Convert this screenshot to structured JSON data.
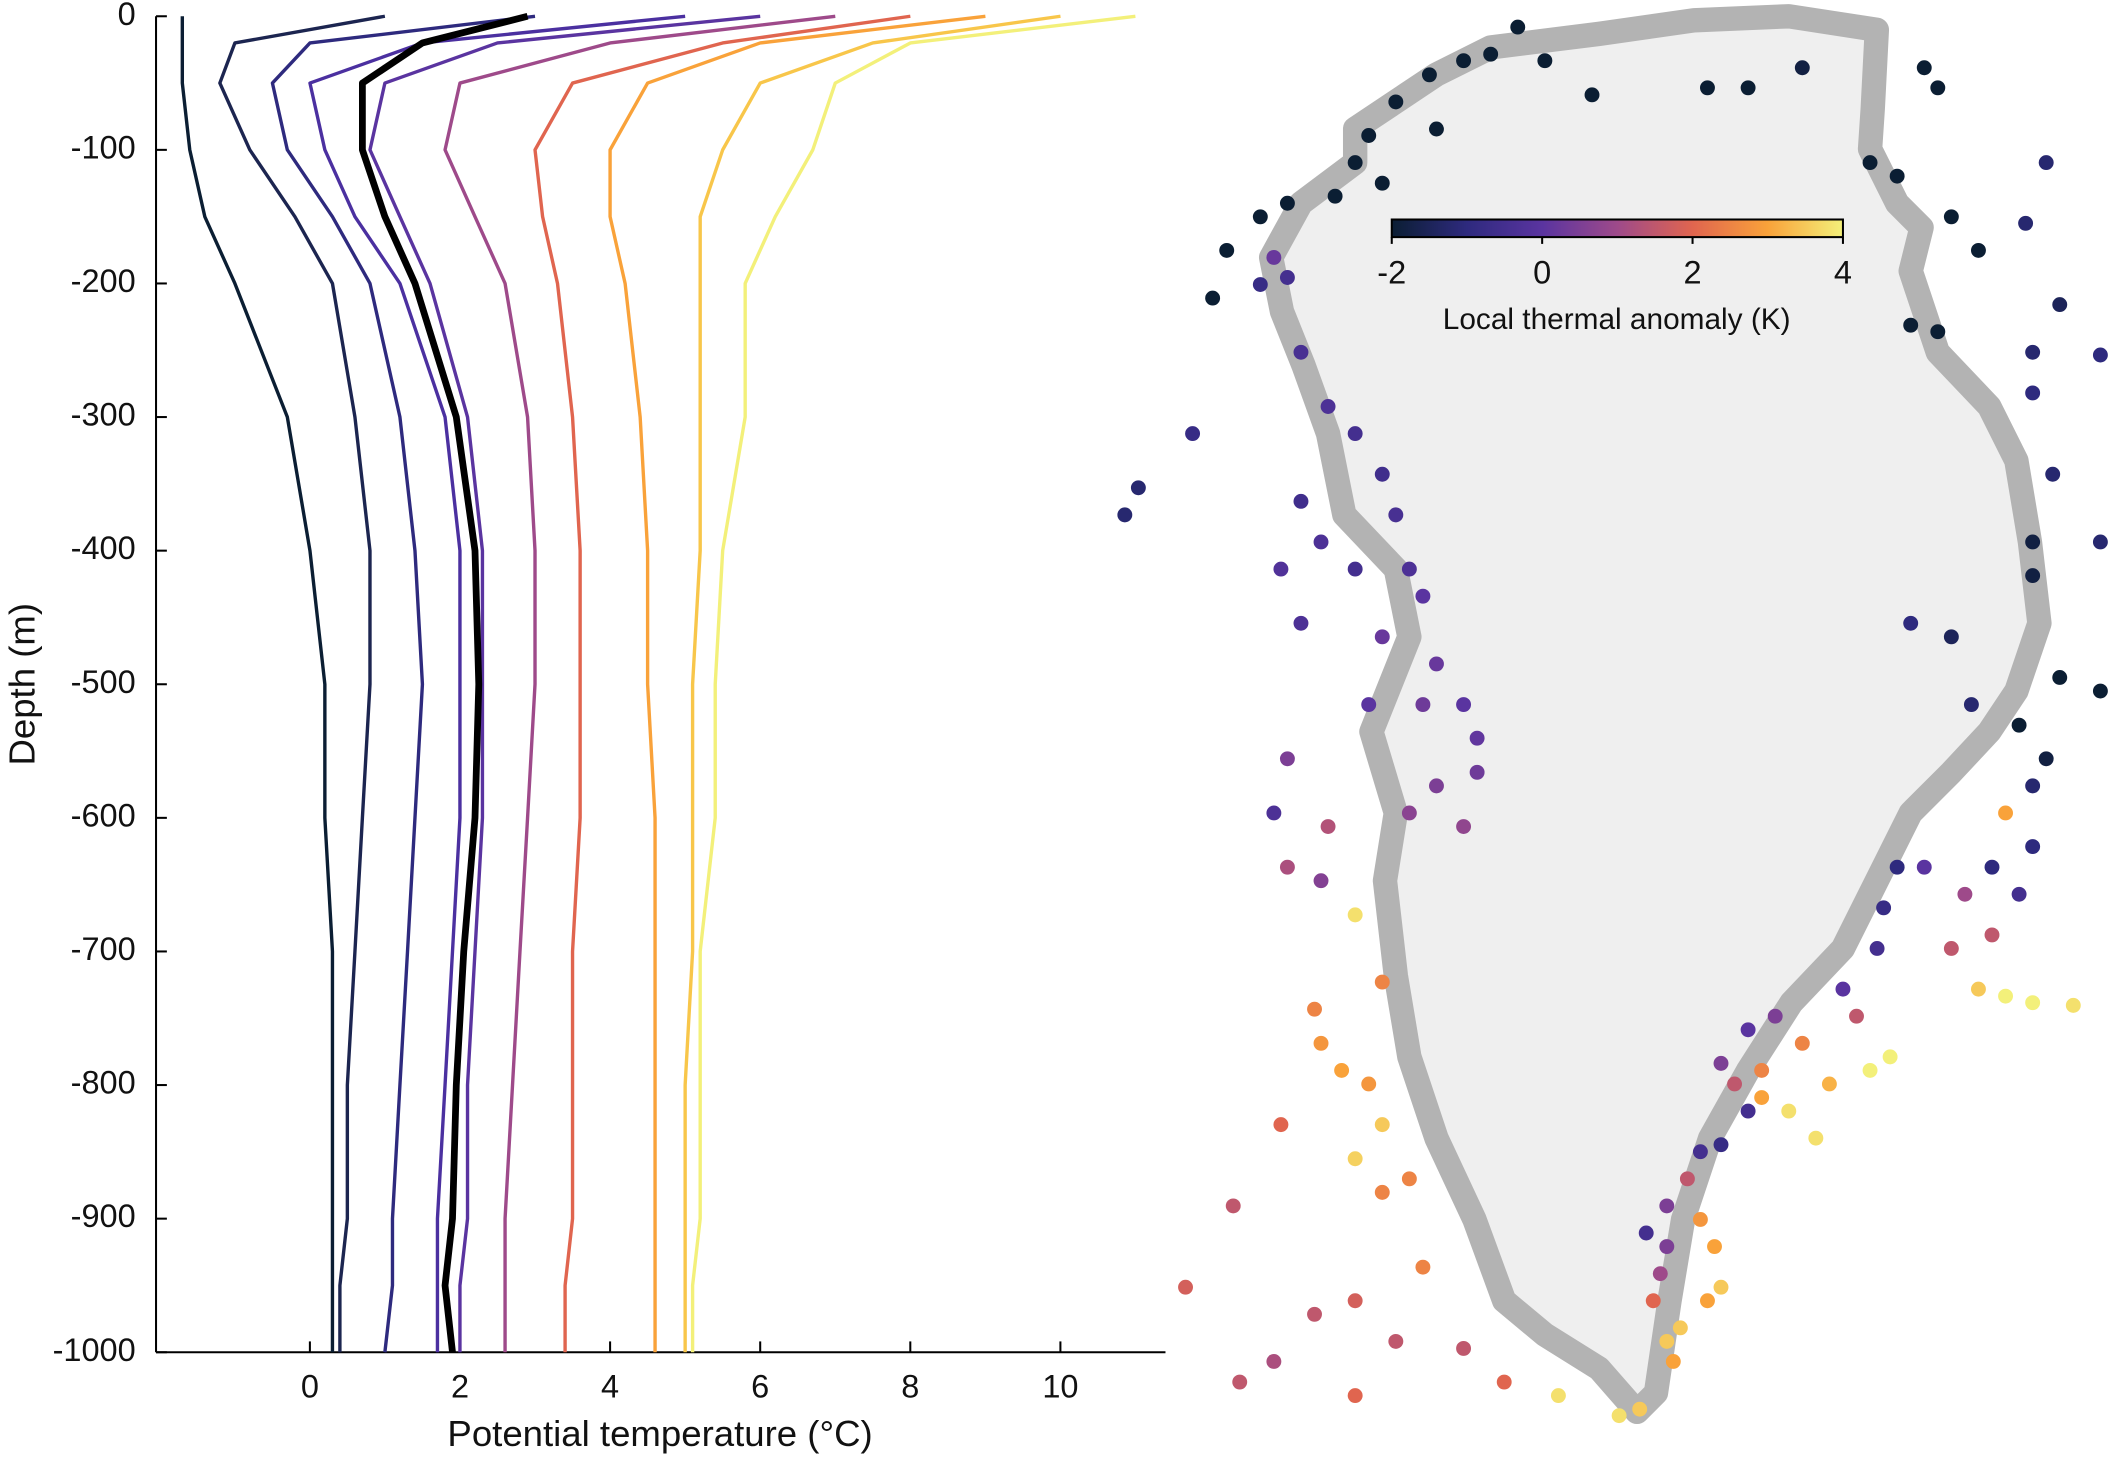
{
  "chart_data": [
    {
      "type": "line",
      "xlabel": "Potential temperature (°C)",
      "ylabel": "Depth (m)",
      "xlim": [
        -2.05,
        11.4
      ],
      "ylim": [
        -1000,
        0
      ],
      "xticks": [
        0,
        2,
        4,
        6,
        8,
        10
      ],
      "yticks": [
        0,
        -100,
        -200,
        -300,
        -400,
        -500,
        -600,
        -700,
        -800,
        -900,
        -1000
      ],
      "y": [
        0,
        -20,
        -50,
        -100,
        -150,
        -200,
        -300,
        -400,
        -500,
        -600,
        -700,
        -800,
        -900,
        -950,
        -1000
      ],
      "series": [
        {
          "color": "#0b1e33",
          "values": [
            -1.7,
            -1.7,
            -1.7,
            -1.6,
            -1.4,
            -1.0,
            -0.3,
            0.0,
            0.2,
            0.2,
            0.3,
            0.3,
            0.3,
            0.3,
            0.3
          ]
        },
        {
          "color": "#1c2550",
          "values": [
            1,
            -1.0,
            -1.2,
            -0.8,
            -0.2,
            0.3,
            0.6,
            0.8,
            0.8,
            0.7,
            0.6,
            0.5,
            0.5,
            0.4,
            0.4
          ]
        },
        {
          "color": "#2e2a7e",
          "values": [
            3,
            0,
            -0.5,
            -0.3,
            0.3,
            0.8,
            1.2,
            1.4,
            1.5,
            1.4,
            1.3,
            1.2,
            1.1,
            1.1,
            1.0
          ]
        },
        {
          "color": "#4b30a0",
          "values": [
            5,
            1.5,
            0,
            0.2,
            0.6,
            1.2,
            1.8,
            2.0,
            2.0,
            2.0,
            1.9,
            1.8,
            1.7,
            1.7,
            1.7
          ]
        },
        {
          "color": "#5a34a0",
          "values": [
            6,
            2.5,
            1,
            0.8,
            1.2,
            1.6,
            2.1,
            2.3,
            2.3,
            2.3,
            2.2,
            2.1,
            2.1,
            2.0,
            2.0
          ]
        },
        {
          "color": "#9e4a8a",
          "values": [
            7,
            4,
            2,
            1.8,
            2.2,
            2.6,
            2.9,
            3.0,
            3.0,
            2.9,
            2.8,
            2.7,
            2.6,
            2.6,
            2.6
          ]
        },
        {
          "color": "#e0654f",
          "values": [
            8,
            5.5,
            3.5,
            3.0,
            3.1,
            3.3,
            3.5,
            3.6,
            3.6,
            3.6,
            3.5,
            3.5,
            3.5,
            3.4,
            3.4
          ]
        },
        {
          "color": "#f9a23a",
          "values": [
            9,
            6,
            4.5,
            4.0,
            4.0,
            4.2,
            4.4,
            4.5,
            4.5,
            4.6,
            4.6,
            4.6,
            4.6,
            4.6,
            4.6
          ]
        },
        {
          "color": "#f8c64a",
          "values": [
            10,
            7.5,
            6,
            5.5,
            5.2,
            5.2,
            5.2,
            5.2,
            5.1,
            5.1,
            5.1,
            5.0,
            5.0,
            5.0,
            5.0
          ]
        },
        {
          "color": "#f3f07a",
          "values": [
            11,
            8,
            7,
            6.7,
            6.2,
            5.8,
            5.8,
            5.5,
            5.4,
            5.4,
            5.2,
            5.2,
            5.2,
            5.1,
            5.1
          ]
        },
        {
          "color": "#000000",
          "values": [
            2.9,
            1.5,
            0.7,
            0.7,
            1.0,
            1.4,
            1.95,
            2.2,
            2.25,
            2.2,
            2.05,
            1.95,
            1.9,
            1.8,
            1.9
          ]
        }
      ]
    },
    {
      "type": "scatter",
      "xlim": [
        -1000,
        900
      ],
      "ylim": [
        -3200,
        -500
      ],
      "colormap": [
        "#0b1e33",
        "#2e2a7e",
        "#5a34a0",
        "#9e4a8a",
        "#e0654f",
        "#f9a23a",
        "#f3f07a"
      ],
      "clim": [
        -2,
        4
      ],
      "colorbar_ticks": [
        -2,
        0,
        2,
        4
      ],
      "colorbar_label": "Local thermal anomaly (K)",
      "x": [
        -388,
        -325,
        -275,
        -175,
        -88,
        -225,
        -450,
        -375,
        -500,
        -525,
        -475,
        -562,
        -650,
        -700,
        -762,
        -788,
        125,
        200,
        300,
        525,
        550,
        425,
        475,
        575,
        625,
        500,
        550,
        750,
        712,
        775,
        725,
        850,
        725,
        762,
        850,
        725,
        725,
        500,
        575,
        612,
        775,
        850,
        700,
        750,
        725,
        -675,
        -700,
        -650,
        -625,
        -575,
        -525,
        -475,
        -450,
        -425,
        -400,
        -525,
        -588,
        -625,
        -825,
        -950,
        -925,
        -662,
        -625,
        -475,
        -375,
        -325,
        -400,
        -300,
        -500,
        -375,
        -425,
        -325,
        -300,
        -650,
        -675,
        -588,
        -650,
        -575,
        -600,
        -588,
        -550,
        -525,
        -475,
        -500,
        -475,
        -662,
        -525,
        -475,
        -425,
        -750,
        -838,
        -600,
        -525,
        -400,
        -450,
        -325,
        -738,
        -675,
        -525,
        -250,
        -150,
        -38,
        0,
        50,
        62,
        75,
        25,
        38,
        50,
        12,
        50,
        88,
        112,
        138,
        150,
        125,
        112,
        150,
        200,
        175,
        225,
        275,
        325,
        225,
        150,
        200,
        250,
        300,
        350,
        425,
        462,
        400,
        375,
        438,
        450,
        475,
        525,
        600,
        650,
        575,
        625,
        675,
        725,
        800,
        675,
        725,
        650,
        700
      ],
      "y": [
        -638,
        -612,
        -600,
        -612,
        -675,
        -550,
        -688,
        -738,
        -750,
        -800,
        -838,
        -862,
        -875,
        -900,
        -962,
        -1050,
        -662,
        -662,
        -625,
        -625,
        -662,
        -800,
        -825,
        -900,
        -962,
        -1100,
        -1112,
        -800,
        -912,
        -1062,
        -1150,
        -1155,
        -1225,
        -1375,
        -1500,
        -1500,
        -1562,
        -1650,
        -1675,
        -1800,
        -1750,
        -1775,
        -1838,
        -1900,
        -1950,
        -975,
        -1025,
        -1012,
        -1150,
        -1250,
        -1300,
        -1375,
        -1450,
        -1550,
        -1600,
        -1550,
        -1500,
        -1425,
        -1300,
        -1450,
        -1400,
        -1550,
        -1650,
        -1675,
        -1725,
        -1800,
        -1800,
        -1862,
        -1800,
        -1950,
        -2000,
        -2025,
        -1925,
        -1900,
        -2000,
        -2125,
        -2100,
        -2025,
        -2362,
        -2425,
        -2475,
        -2188,
        -2312,
        -2500,
        -2575,
        -2575,
        -2638,
        -2700,
        -2675,
        -2725,
        -2875,
        -2925,
        -2900,
        -2838,
        -2975,
        -2988,
        -3050,
        -3012,
        -3075,
        -3050,
        -3075,
        -3112,
        -3100,
        -2975,
        -3012,
        -2950,
        -2900,
        -2850,
        -2800,
        -2775,
        -2725,
        -2675,
        -2750,
        -2800,
        -2875,
        -2900,
        -2625,
        -2612,
        -2550,
        -2500,
        -2525,
        -2550,
        -2600,
        -2475,
        -2462,
        -2400,
        -2375,
        -2425,
        -2500,
        -2475,
        -2450,
        -2375,
        -2325,
        -2250,
        -2175,
        -2100,
        -2100,
        -2150,
        -2225,
        -2250,
        -2325,
        -2338,
        -2350,
        -2355,
        -2000,
        -2062,
        -2100,
        -2150
      ],
      "values": [
        -2,
        -2,
        -2,
        -2,
        -2,
        -2,
        -2,
        -2,
        -2,
        -2,
        -2,
        -2,
        -2,
        -2,
        -2,
        -2,
        -2,
        -2,
        -1.8,
        -2,
        -2,
        -2,
        -2,
        -2,
        -2,
        -2,
        -2,
        -1.2,
        -1.2,
        -1.5,
        -1.2,
        -1,
        -1,
        -1.2,
        -1.2,
        -1.8,
        -1.8,
        -1,
        -1.5,
        -1.2,
        -2,
        -2,
        -2,
        -1.8,
        -1.2,
        0.2,
        -0.8,
        -0.5,
        -0.4,
        -0.3,
        -0.5,
        -0.6,
        -0.4,
        -0.3,
        0,
        -0.5,
        -0.3,
        -0.6,
        -0.8,
        -1.2,
        -1.2,
        -0.2,
        -0.3,
        0.2,
        0.2,
        0,
        0.3,
        0.1,
        0,
        0.5,
        0.7,
        0.8,
        0.3,
        0.5,
        -0.3,
        0.6,
        1.2,
        1.3,
        2.5,
        2.8,
        3,
        3.8,
        2.5,
        2.8,
        3.5,
        2,
        3.6,
        2.5,
        2.5,
        1.5,
        1.8,
        1.5,
        1.8,
        2.5,
        1.5,
        1.5,
        1.5,
        1.2,
        2,
        2,
        3.8,
        3.8,
        3.5,
        3.5,
        3,
        3.5,
        2,
        1,
        0.5,
        -0.5,
        0.5,
        1.5,
        2.8,
        3,
        3.5,
        3,
        -0.5,
        -0.8,
        -0.5,
        1.5,
        3,
        3.8,
        3.8,
        2.5,
        0.5,
        0,
        0.5,
        2.5,
        3.2,
        4,
        4,
        1.5,
        0,
        -0.5,
        -0.8,
        -1,
        0,
        1,
        1.5,
        1.5,
        3.5,
        4,
        4,
        3.8,
        3,
        -1,
        -1,
        -0.5
      ]
    }
  ]
}
